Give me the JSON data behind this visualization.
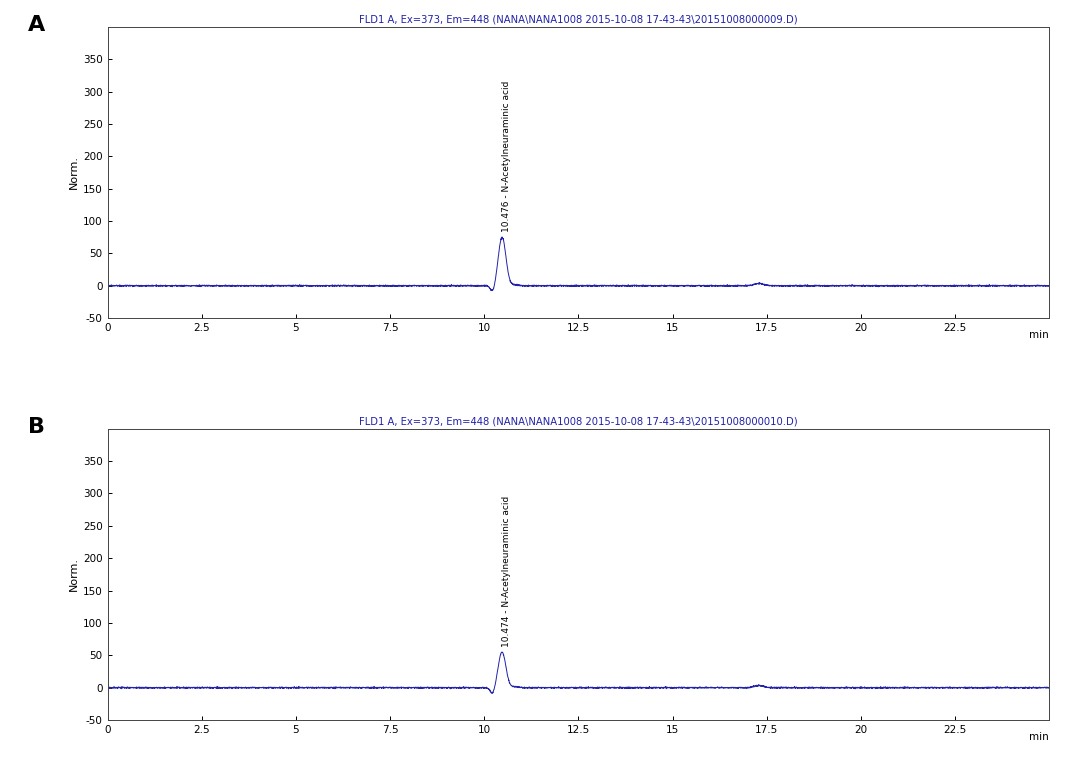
{
  "panel_A": {
    "title": "FLD1 A, Ex=373, Em=448 (NANA\\NANA1008 2015-10-08 17-43-43\\20151008000009.D)",
    "peak_time": 10.476,
    "peak_height": 75,
    "peak_label": "10.476 - N-Acetylneuraminic acid",
    "small_peak_time": 17.3,
    "small_peak_height": 3.5
  },
  "panel_B": {
    "title": "FLD1 A, Ex=373, Em=448 (NANA\\NANA1008 2015-10-08 17-43-43\\20151008000010.D)",
    "peak_time": 10.474,
    "peak_height": 55,
    "peak_label": "10.474 - N-Acetylneuraminic acid",
    "small_peak_time": 17.3,
    "small_peak_height": 3.5
  },
  "xlim": [
    0,
    25
  ],
  "ylim": [
    -50,
    400
  ],
  "ylabel": "Norm.",
  "xticks": [
    0,
    2.5,
    5,
    7.5,
    10,
    12.5,
    15,
    17.5,
    20,
    22.5
  ],
  "yticks": [
    -50,
    0,
    50,
    100,
    150,
    200,
    250,
    300,
    350
  ],
  "line_color": "#2222aa",
  "title_color": "#2222aa",
  "background_color": "#ffffff",
  "plot_bg_color": "#ffffff",
  "label_A": "A",
  "label_B": "B",
  "noise_amplitude": 0.5
}
